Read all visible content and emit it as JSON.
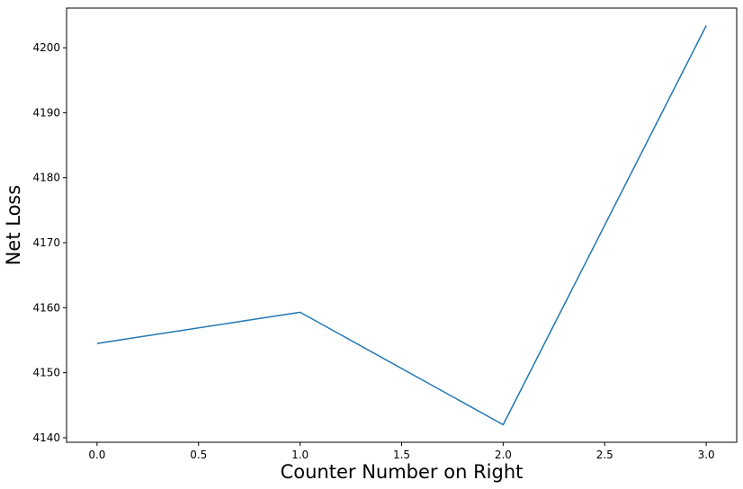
{
  "chart_data": {
    "type": "line",
    "title": "",
    "xlabel": "Counter Number on Right",
    "ylabel": "Net Loss",
    "x": [
      0,
      1,
      2,
      3
    ],
    "series": [
      {
        "values": [
          4154.5,
          4159.3,
          4142.0,
          4203.4
        ],
        "color": "#1f77b4"
      }
    ],
    "xlim": [
      -0.15,
      3.15
    ],
    "ylim": [
      4139.3,
      4206.1
    ],
    "xticks": [
      0.0,
      0.5,
      1.0,
      1.5,
      2.0,
      2.5,
      3.0
    ],
    "xtick_labels": [
      "0.0",
      "0.5",
      "1.0",
      "1.5",
      "2.0",
      "2.5",
      "3.0"
    ],
    "yticks": [
      4140,
      4150,
      4160,
      4170,
      4180,
      4190,
      4200
    ],
    "ytick_labels": [
      "4140",
      "4150",
      "4160",
      "4170",
      "4180",
      "4190",
      "4200"
    ],
    "grid": false,
    "legend": false
  }
}
